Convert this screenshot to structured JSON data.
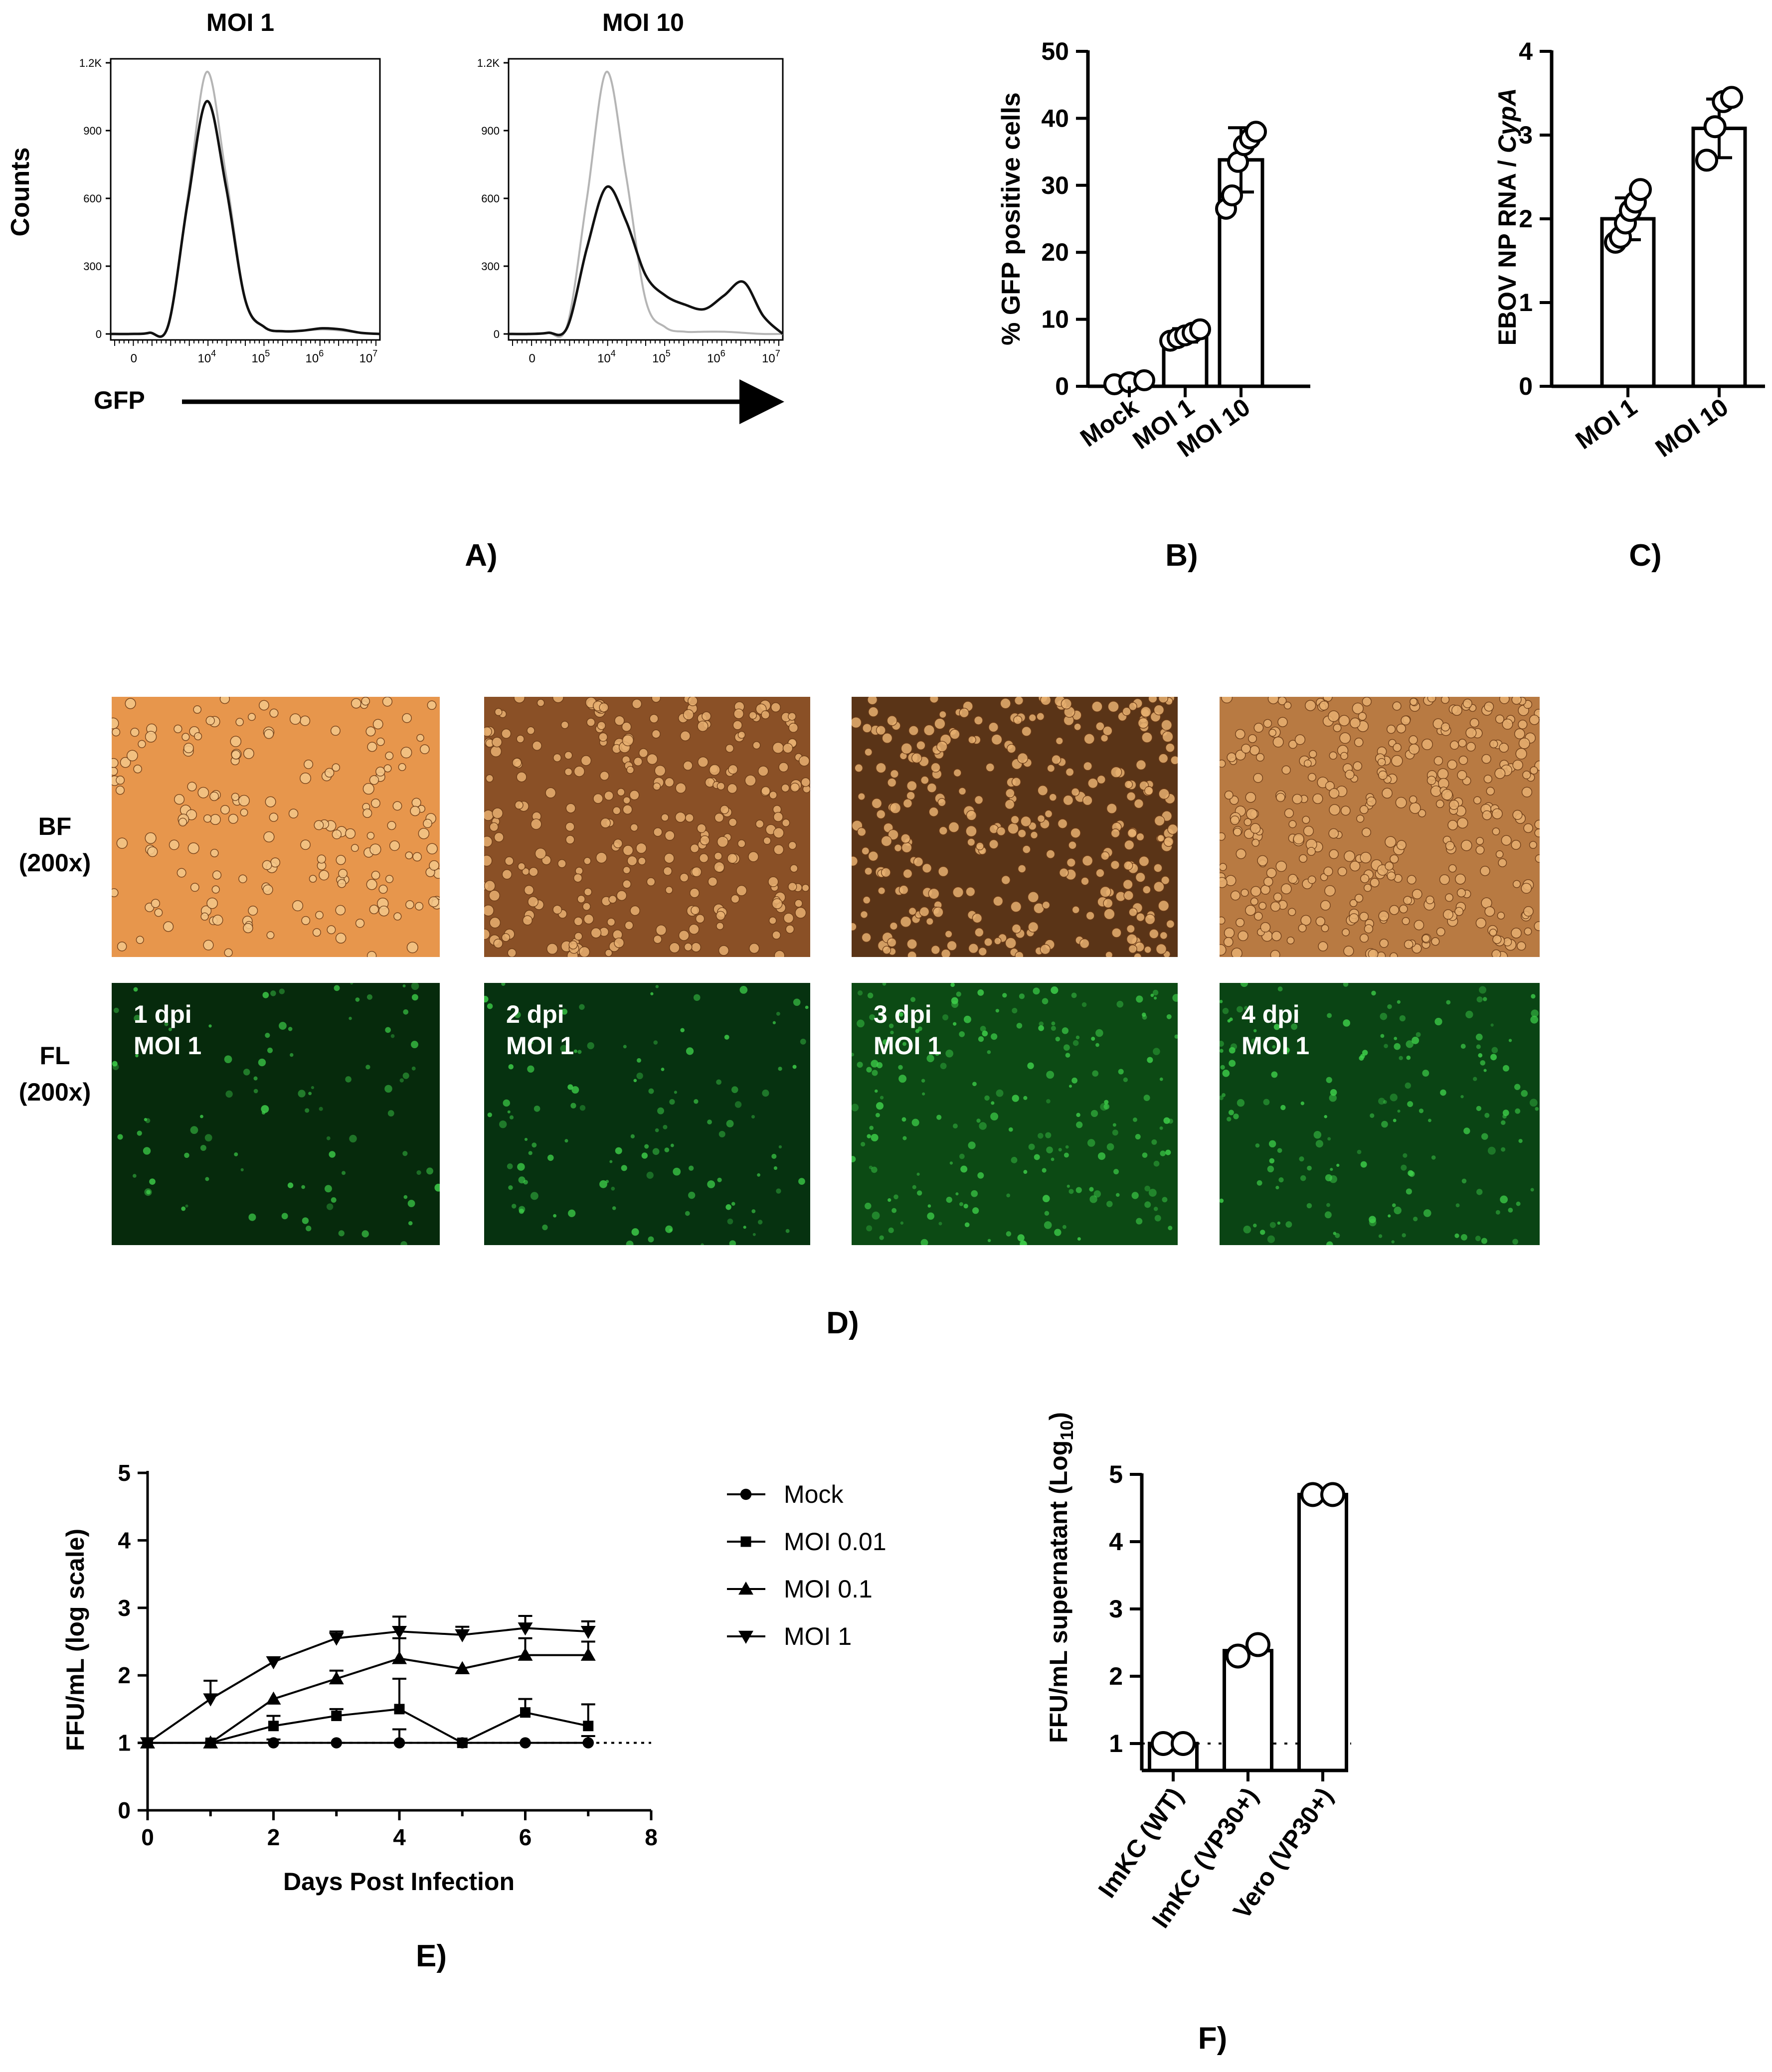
{
  "panel_letters": [
    "A)",
    "B)",
    "C)",
    "D)",
    "E)",
    "F)"
  ],
  "colors": {
    "axis": "#000000",
    "hist_control": "#b5b5b5",
    "hist_infected": "#111111",
    "bf_light": "#e89a50",
    "bf_dark": "#4a2a14",
    "fl_dark": "#062a0c",
    "fl_bright": "#3ed04a"
  },
  "panelA": {
    "titles": [
      "MOI 1",
      "MOI 10"
    ],
    "ylabel": "Counts",
    "xlabel": "GFP",
    "y_ticks": [
      "0",
      "300",
      "600",
      "900",
      "1.2K"
    ],
    "x_ticks": [
      {
        "base": "0",
        "exp": ""
      },
      {
        "base": "10",
        "exp": "4"
      },
      {
        "base": "10",
        "exp": "5"
      },
      {
        "base": "10",
        "exp": "6"
      },
      {
        "base": "10",
        "exp": "7"
      }
    ]
  },
  "chart_data": [
    {
      "type": "histogram",
      "panel": "A) MOI 1",
      "title": "MOI 1",
      "xlabel": "GFP",
      "ylabel": "Counts",
      "ylim": [
        0,
        1200
      ],
      "x": [
        "0.0",
        "0.5",
        "1.0",
        "1.5",
        "2.0",
        "2.5",
        "3.0",
        "3.5",
        "4.0",
        "4.5",
        "5.0",
        "5.5",
        "6.0",
        "6.5",
        "7.0"
      ],
      "series": [
        {
          "values": [
            0,
            0,
            5,
            40,
            600,
            1160,
            700,
            150,
            30,
            10,
            15,
            20,
            15,
            5,
            0
          ]
        },
        {
          "values": [
            0,
            0,
            5,
            40,
            580,
            1030,
            650,
            150,
            30,
            12,
            15,
            25,
            20,
            5,
            0
          ]
        }
      ]
    },
    {
      "type": "histogram",
      "panel": "A) MOI 10",
      "title": "MOI 10",
      "xlabel": "GFP",
      "ylabel": "Counts",
      "ylim": [
        0,
        1200
      ],
      "x": [
        "0.0",
        "0.5",
        "1.0",
        "1.5",
        "2.0",
        "2.5",
        "3.0",
        "3.5",
        "4.0",
        "4.5",
        "5.0",
        "5.5",
        "6.0",
        "6.5",
        "7.0"
      ],
      "series": [
        {
          "values": [
            0,
            0,
            5,
            40,
            600,
            1160,
            700,
            150,
            30,
            10,
            10,
            10,
            5,
            0,
            0
          ]
        },
        {
          "values": [
            0,
            0,
            5,
            30,
            380,
            650,
            500,
            260,
            170,
            130,
            110,
            170,
            230,
            80,
            0
          ]
        }
      ]
    },
    {
      "type": "bar",
      "panel": "B)",
      "categories": [
        "Mock",
        "MOI 1",
        "MOI 10"
      ],
      "values": [
        0.6,
        7.6,
        33.8
      ],
      "errors": [
        0.3,
        1.0,
        4.8
      ],
      "points": [
        [
          0.3,
          0.6,
          0.9
        ],
        [
          6.8,
          7.2,
          7.6,
          8.0,
          8.5
        ],
        [
          26.5,
          28.5,
          33.5,
          36.0,
          37.0,
          38.0
        ]
      ],
      "ylabel": "% GFP positive cells",
      "ylim": [
        0,
        50
      ],
      "yticks": [
        "0",
        "10",
        "20",
        "30",
        "40",
        "50"
      ]
    },
    {
      "type": "bar",
      "panel": "C)",
      "categories": [
        "MOI 1",
        "MOI 10"
      ],
      "values": [
        2.0,
        3.08
      ],
      "errors": [
        0.25,
        0.35
      ],
      "points": [
        [
          1.72,
          1.78,
          1.95,
          2.1,
          2.2,
          2.35
        ],
        [
          2.7,
          3.1,
          3.4,
          3.45
        ]
      ],
      "ylabel_prefix": "EBOV NP RNA / ",
      "ylabel_italic": "CypA",
      "ylim": [
        0,
        4
      ],
      "yticks": [
        "0",
        "1",
        "2",
        "3",
        "4"
      ]
    },
    {
      "type": "line",
      "panel": "E)",
      "xlabel": "Days Post Infection",
      "ylabel": "FFU/mL (log scale)",
      "xlim": [
        0,
        8
      ],
      "ylim": [
        0,
        5
      ],
      "xticks": [
        "0",
        "2",
        "4",
        "6",
        "8"
      ],
      "yticks": [
        "0",
        "1",
        "2",
        "3",
        "4",
        "5"
      ],
      "reference_line": 1,
      "series": [
        {
          "name": "Mock",
          "marker": "circle",
          "x": [
            0,
            1,
            2,
            3,
            4,
            5,
            6,
            7
          ],
          "y": [
            1,
            1,
            1,
            1,
            1,
            1,
            1,
            1
          ],
          "err": [
            0,
            0,
            0.05,
            0,
            0.2,
            0,
            0,
            0.1
          ]
        },
        {
          "name": "MOI 0.01",
          "marker": "square",
          "x": [
            0,
            1,
            2,
            3,
            4,
            5,
            6,
            7
          ],
          "y": [
            1,
            1,
            1.25,
            1.4,
            1.5,
            1,
            1.45,
            1.25
          ],
          "err": [
            0,
            0,
            0.15,
            0.1,
            0.45,
            0,
            0.2,
            0.32
          ]
        },
        {
          "name": "MOI 0.1",
          "marker": "triangle-up",
          "x": [
            0,
            1,
            2,
            3,
            4,
            5,
            6,
            7
          ],
          "y": [
            1,
            1,
            1.65,
            1.95,
            2.25,
            2.1,
            2.3,
            2.3
          ],
          "err": [
            0,
            0,
            0,
            0.12,
            0.3,
            0,
            0.25,
            0.2
          ]
        },
        {
          "name": "MOI 1",
          "marker": "triangle-down",
          "x": [
            0,
            1,
            2,
            3,
            4,
            5,
            6,
            7
          ],
          "y": [
            1,
            1.65,
            2.2,
            2.55,
            2.65,
            2.6,
            2.7,
            2.65
          ],
          "err": [
            0,
            0.27,
            0,
            0.1,
            0.22,
            0.12,
            0.18,
            0.15
          ]
        }
      ],
      "legend_position": "right"
    },
    {
      "type": "bar",
      "panel": "F)",
      "categories": [
        "ImKC (WT)",
        "ImKC (VP30+)",
        "Vero (VP30+)"
      ],
      "values": [
        1.0,
        2.38,
        4.7
      ],
      "points": [
        [
          1.0,
          1.0
        ],
        [
          2.3,
          2.47
        ],
        [
          4.7,
          4.7
        ]
      ],
      "ylabel": "FFU/mL supernatant (Log",
      "ylabel_sub": "10",
      "ylabel_end": ")",
      "ylim": [
        0.6,
        5
      ],
      "yticks": [
        "1",
        "2",
        "3",
        "4",
        "5"
      ],
      "reference_line": 1
    }
  ],
  "panelD": {
    "row_labels": [
      [
        "BF",
        "(200x)"
      ],
      [
        "FL",
        "(200x)"
      ]
    ],
    "fl_captions": [
      [
        "1 dpi",
        "MOI 1"
      ],
      [
        "2 dpi",
        "MOI 1"
      ],
      [
        "3 dpi",
        "MOI 1"
      ],
      [
        "4 dpi",
        "MOI 1"
      ]
    ],
    "bf_tones": [
      "#e7964c",
      "#8a5026",
      "#5a3417",
      "#b87a42"
    ],
    "bf_density": [
      0.35,
      0.55,
      0.6,
      0.7
    ],
    "fl_tones": [
      "#062a0c",
      "#063210",
      "#0c4a14",
      "#0a4414"
    ],
    "fl_density": [
      0.35,
      0.45,
      0.8,
      0.65
    ]
  }
}
